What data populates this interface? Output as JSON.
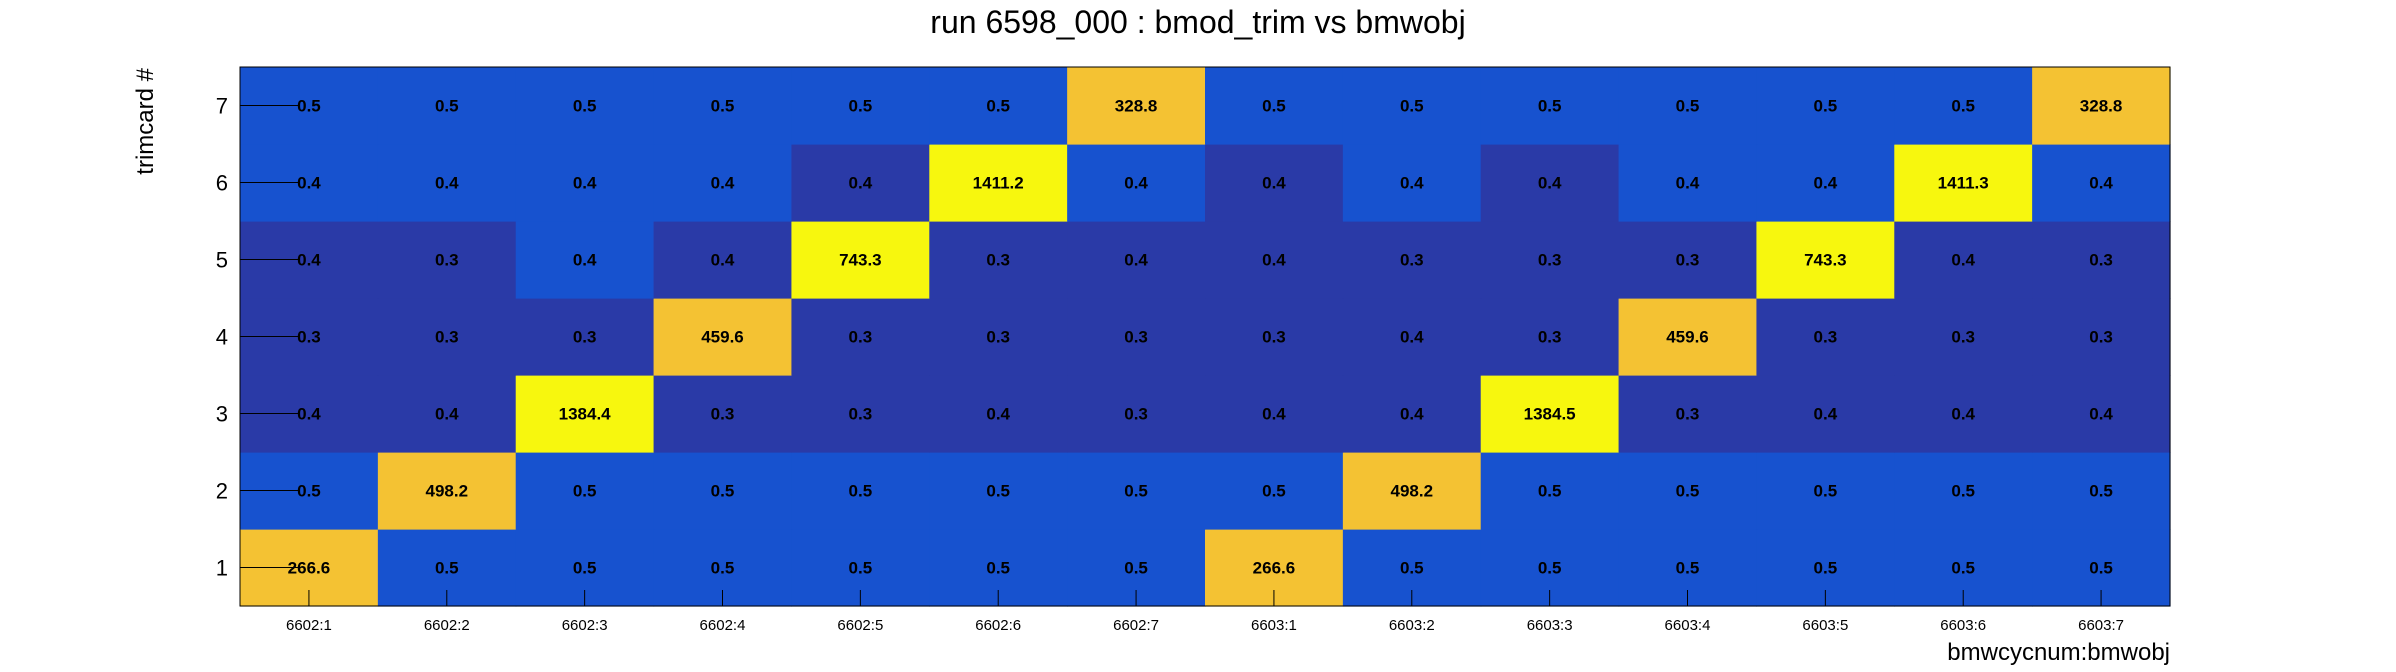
{
  "chart_data": {
    "type": "heatmap",
    "title": "run 6598_000 : bmod_trim vs bmwobj",
    "xlabel": "bmwcycnum:bmwobj",
    "ylabel": "trimcard #",
    "x_categories": [
      "6602:1",
      "6602:2",
      "6602:3",
      "6602:4",
      "6602:5",
      "6602:6",
      "6602:7",
      "6603:1",
      "6603:2",
      "6603:3",
      "6603:4",
      "6603:5",
      "6603:6",
      "6603:7"
    ],
    "y_categories": [
      "1",
      "2",
      "3",
      "4",
      "5",
      "6",
      "7"
    ],
    "values": [
      [
        "266.6",
        "0.5",
        "0.5",
        "0.5",
        "0.5",
        "0.5",
        "0.5",
        "266.6",
        "0.5",
        "0.5",
        "0.5",
        "0.5",
        "0.5",
        "0.5"
      ],
      [
        "0.5",
        "498.2",
        "0.5",
        "0.5",
        "0.5",
        "0.5",
        "0.5",
        "0.5",
        "498.2",
        "0.5",
        "0.5",
        "0.5",
        "0.5",
        "0.5"
      ],
      [
        "0.4",
        "0.4",
        "1384.4",
        "0.3",
        "0.3",
        "0.4",
        "0.3",
        "0.4",
        "0.4",
        "1384.5",
        "0.3",
        "0.4",
        "0.4",
        "0.4"
      ],
      [
        "0.3",
        "0.3",
        "0.3",
        "459.6",
        "0.3",
        "0.3",
        "0.3",
        "0.3",
        "0.4",
        "0.3",
        "459.6",
        "0.3",
        "0.3",
        "0.3"
      ],
      [
        "0.4",
        "0.3",
        "0.4",
        "0.4",
        "743.3",
        "0.3",
        "0.4",
        "0.4",
        "0.3",
        "0.3",
        "0.3",
        "743.3",
        "0.4",
        "0.3"
      ],
      [
        "0.4",
        "0.4",
        "0.4",
        "0.4",
        "0.4",
        "1411.2",
        "0.4",
        "0.4",
        "0.4",
        "0.4",
        "0.4",
        "0.4",
        "1411.3",
        "0.4"
      ],
      [
        "0.5",
        "0.5",
        "0.5",
        "0.5",
        "0.5",
        "0.5",
        "328.8",
        "0.5",
        "0.5",
        "0.5",
        "0.5",
        "0.5",
        "0.5",
        "328.8"
      ]
    ],
    "colors": {
      "dark_blue": "#2a3aa7",
      "blue": "#1752cf",
      "amber": "#f4c233",
      "yellow": "#f7f70e"
    }
  }
}
